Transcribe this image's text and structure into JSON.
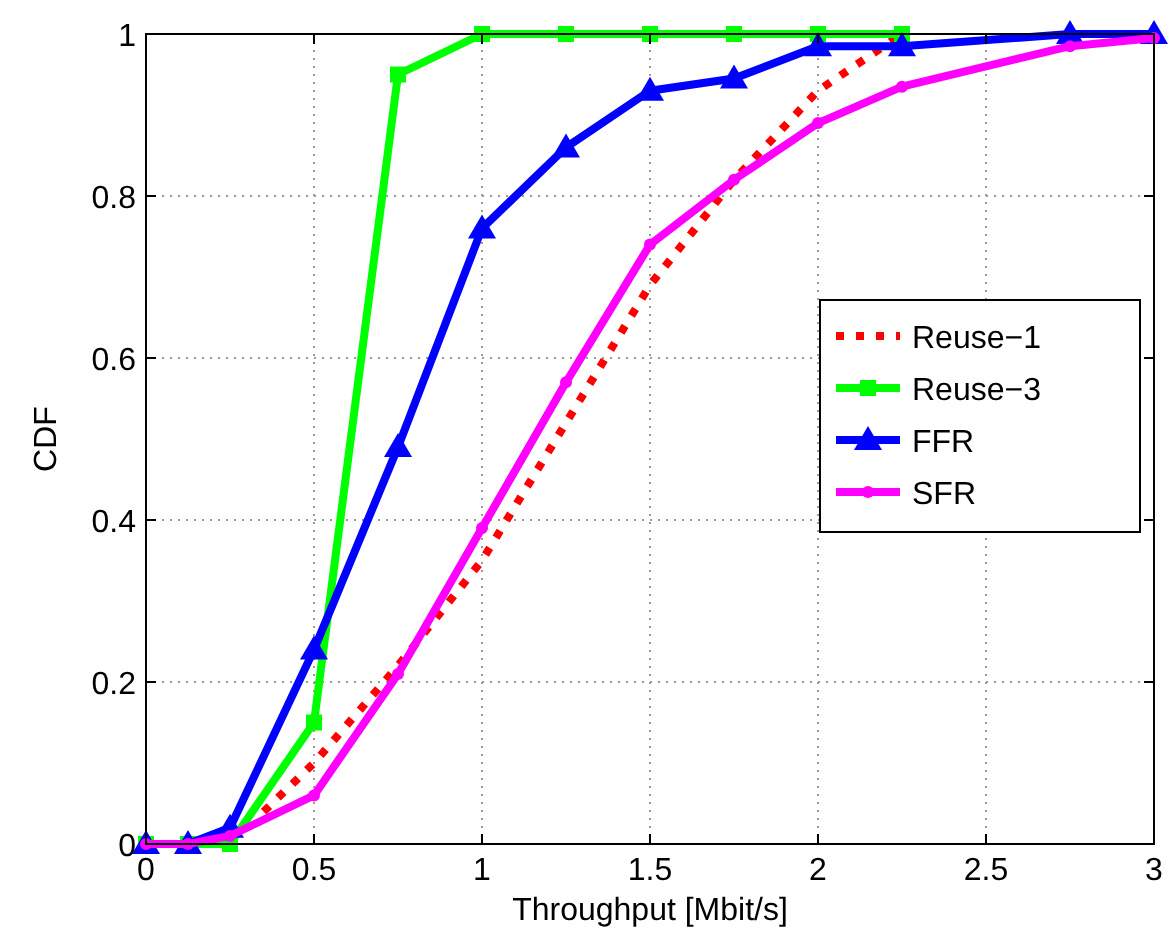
{
  "chart_data": {
    "type": "line",
    "xlabel": "Throughput [Mbit/s]",
    "ylabel": "CDF",
    "xlim": [
      0,
      3
    ],
    "ylim": [
      0,
      1
    ],
    "xticks": [
      0,
      0.5,
      1,
      1.5,
      2,
      2.5,
      3
    ],
    "yticks": [
      0,
      0.2,
      0.4,
      0.6,
      0.8,
      1
    ],
    "grid": true,
    "legend": "right",
    "series": [
      {
        "name": "Reuse−1",
        "color": "#ff0000",
        "line_style": "dotted",
        "marker": "none",
        "x": [
          0.35,
          0.5,
          0.75,
          1,
          1.25,
          1.5,
          1.75,
          2,
          2.25
        ],
        "values": [
          0.04,
          0.1,
          0.22,
          0.35,
          0.52,
          0.69,
          0.82,
          0.93,
          1
        ]
      },
      {
        "name": "Reuse−3",
        "color": "#00ff00",
        "line_style": "solid",
        "marker": "square",
        "x": [
          0,
          0.125,
          0.25,
          0.5,
          0.75,
          1,
          1.25,
          1.5,
          1.75,
          2,
          2.25
        ],
        "values": [
          0,
          0,
          0,
          0.15,
          0.95,
          1,
          1,
          1,
          1,
          1,
          1
        ]
      },
      {
        "name": "FFR",
        "color": "#0000ff",
        "line_style": "solid",
        "marker": "triangle",
        "x": [
          0,
          0.125,
          0.25,
          0.5,
          0.75,
          1,
          1.25,
          1.5,
          1.75,
          2,
          2.25,
          2.75,
          3
        ],
        "values": [
          0,
          0,
          0.02,
          0.24,
          0.49,
          0.76,
          0.86,
          0.93,
          0.945,
          0.985,
          0.985,
          1,
          1
        ]
      },
      {
        "name": "SFR",
        "color": "#ff00ff",
        "line_style": "solid",
        "marker": "circle",
        "x": [
          0,
          0.125,
          0.25,
          0.5,
          0.75,
          1,
          1.25,
          1.5,
          1.75,
          2,
          2.25,
          2.75,
          3
        ],
        "values": [
          0,
          0,
          0.01,
          0.06,
          0.21,
          0.39,
          0.57,
          0.74,
          0.82,
          0.89,
          0.935,
          0.985,
          0.995
        ]
      }
    ]
  }
}
